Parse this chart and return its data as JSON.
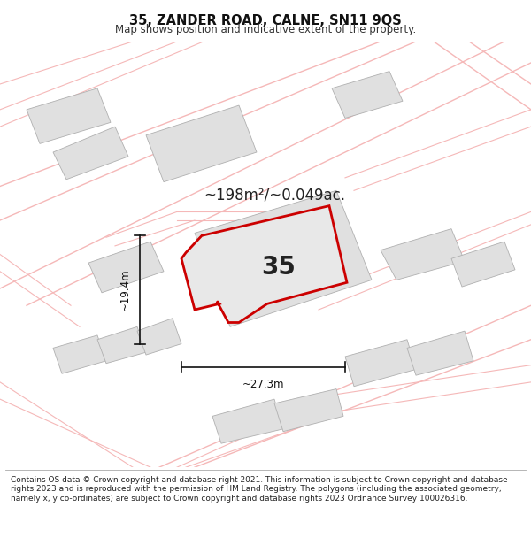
{
  "title": "35, ZANDER ROAD, CALNE, SN11 9QS",
  "subtitle": "Map shows position and indicative extent of the property.",
  "area_text": "~198m²/~0.049ac.",
  "plot_number": "35",
  "width_label": "~27.3m",
  "height_label": "~19.4m",
  "footer_text": "Contains OS data © Crown copyright and database right 2021. This information is subject to Crown copyright and database rights 2023 and is reproduced with the permission of HM Land Registry. The polygons (including the associated geometry, namely x, y co-ordinates) are subject to Crown copyright and database rights 2023 Ordnance Survey 100026316.",
  "bg_color": "#ffffff",
  "map_bg_color": "#ffffff",
  "road_color": "#f5b8b8",
  "road_color2": "#f0c0c0",
  "plot_fill": "#e8e8e8",
  "plot_edge_color": "#cc0000",
  "neighbor_fill": "#e0e0e0",
  "neighbor_edge": "#b0b0b0",
  "dim_line_color": "#111111",
  "text_color": "#222222"
}
